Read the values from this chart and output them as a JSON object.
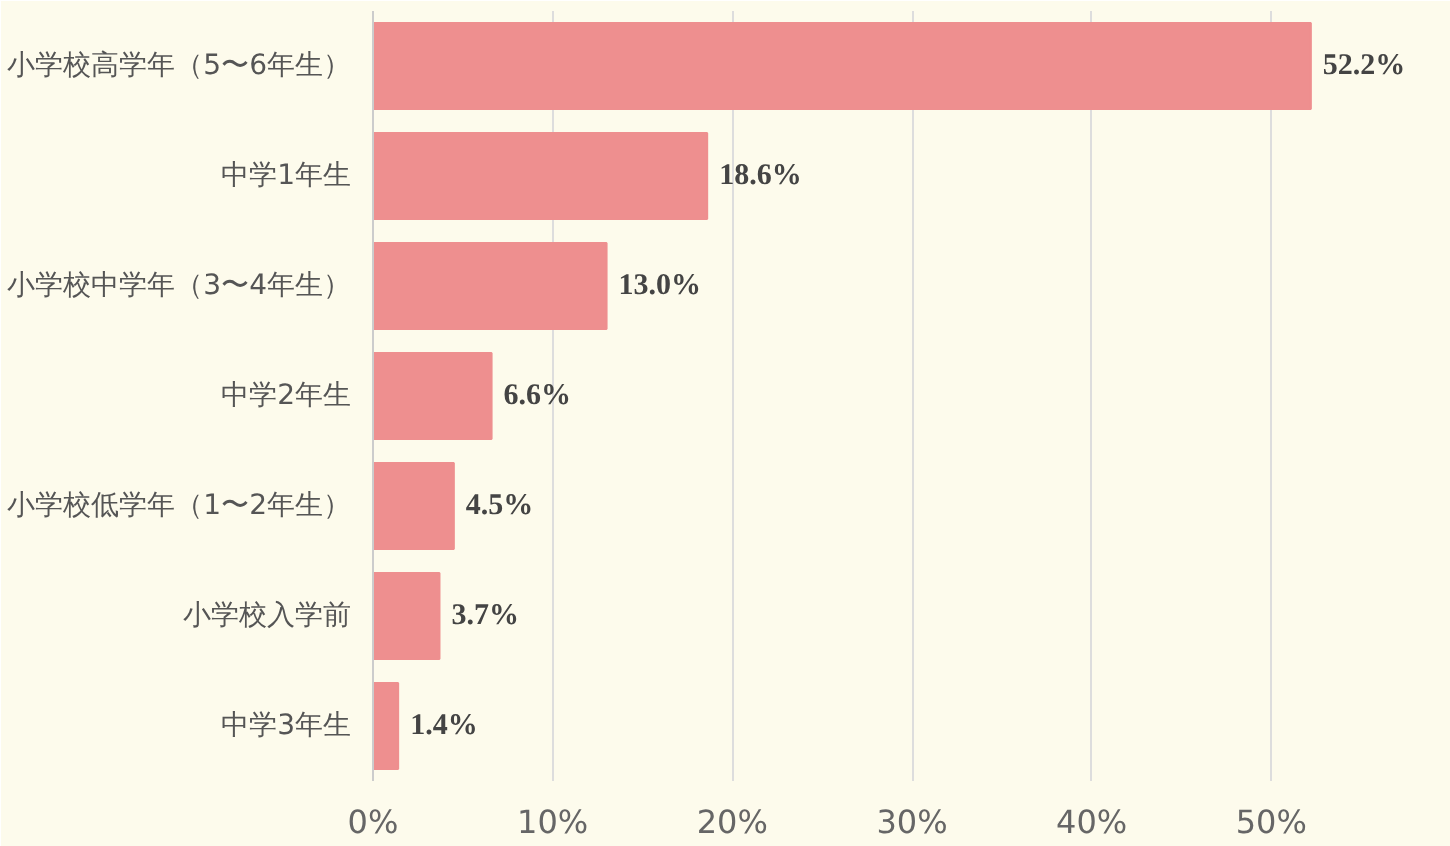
{
  "chart_data": {
    "type": "bar",
    "orientation": "horizontal",
    "categories": [
      "小学校高学年（5〜6年生）",
      "中学1年生",
      "小学校中学年（3〜4年生）",
      "中学2年生",
      "小学校低学年（1〜2年生）",
      "小学校入学前",
      "中学3年生"
    ],
    "values": [
      52.2,
      18.6,
      13.0,
      6.6,
      4.5,
      3.7,
      1.4
    ],
    "color": "#ee8f8f",
    "value_labels": [
      "52.2%",
      "18.6%",
      "13.0%",
      "6.6%",
      "4.5%",
      "3.7%",
      "1.4%"
    ],
    "xlim": [
      0,
      60
    ],
    "xticks": [
      {
        "value": 0,
        "label": "0%"
      },
      {
        "value": 10,
        "label": "10%"
      },
      {
        "value": 20,
        "label": "20%"
      },
      {
        "value": 30,
        "label": "30%"
      },
      {
        "value": 40,
        "label": "40%"
      },
      {
        "value": 50,
        "label": "50%"
      }
    ],
    "grid": "x"
  }
}
